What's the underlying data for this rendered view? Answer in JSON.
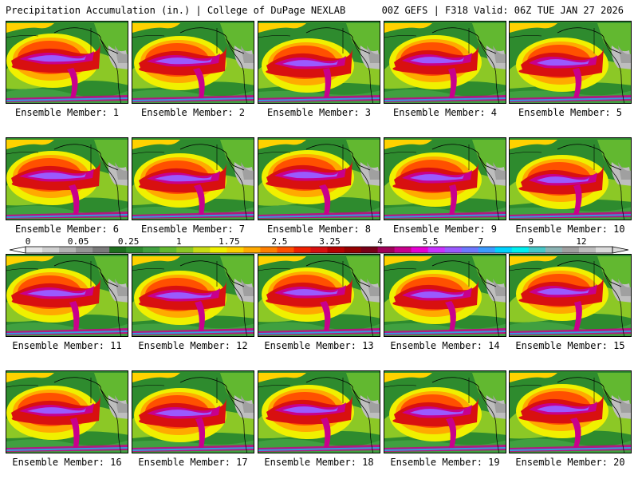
{
  "header": {
    "title_left": "Precipitation Accumulation (in.) | College of DuPage NEXLAB",
    "title_right": "00Z GEFS | F318 Valid: 06Z TUE JAN 27 2026"
  },
  "panels": [
    {
      "label": "Ensemble Member: 1"
    },
    {
      "label": "Ensemble Member: 2"
    },
    {
      "label": "Ensemble Member: 3"
    },
    {
      "label": "Ensemble Member: 4"
    },
    {
      "label": "Ensemble Member: 5"
    },
    {
      "label": "Ensemble Member: 6"
    },
    {
      "label": "Ensemble Member: 7"
    },
    {
      "label": "Ensemble Member: 8"
    },
    {
      "label": "Ensemble Member: 9"
    },
    {
      "label": "Ensemble Member: 10"
    },
    {
      "label": "Ensemble Member: 11"
    },
    {
      "label": "Ensemble Member: 12"
    },
    {
      "label": "Ensemble Member: 13"
    },
    {
      "label": "Ensemble Member: 14"
    },
    {
      "label": "Ensemble Member: 15"
    },
    {
      "label": "Ensemble Member: 16"
    },
    {
      "label": "Ensemble Member: 17"
    },
    {
      "label": "Ensemble Member: 18"
    },
    {
      "label": "Ensemble Member: 19"
    },
    {
      "label": "Ensemble Member: 20"
    }
  ],
  "colorbar": {
    "ticks": [
      "0",
      "0.05",
      "0.25",
      "1",
      "1.75",
      "2.5",
      "3.25",
      "4",
      "5.5",
      "7",
      "9",
      "12"
    ],
    "colors": [
      "#e8e8e8",
      "#d0d0d0",
      "#b4b4b4",
      "#969696",
      "#7a7a7a",
      "#1e6e1e",
      "#2e8b2e",
      "#40a040",
      "#62b830",
      "#8cc826",
      "#c8dc14",
      "#f0f000",
      "#ffd200",
      "#ffaa00",
      "#ff8000",
      "#ff5000",
      "#f02000",
      "#d81010",
      "#b80000",
      "#960000",
      "#780018",
      "#a00058",
      "#c8008c",
      "#e600d2",
      "#c832ff",
      "#9a5aff",
      "#6e78ff",
      "#3c9bff",
      "#00d2ff",
      "#00f0f0",
      "#46c8c8",
      "#8cb4b4",
      "#a0a0a0",
      "#bebebe",
      "#dcdcdc"
    ]
  }
}
